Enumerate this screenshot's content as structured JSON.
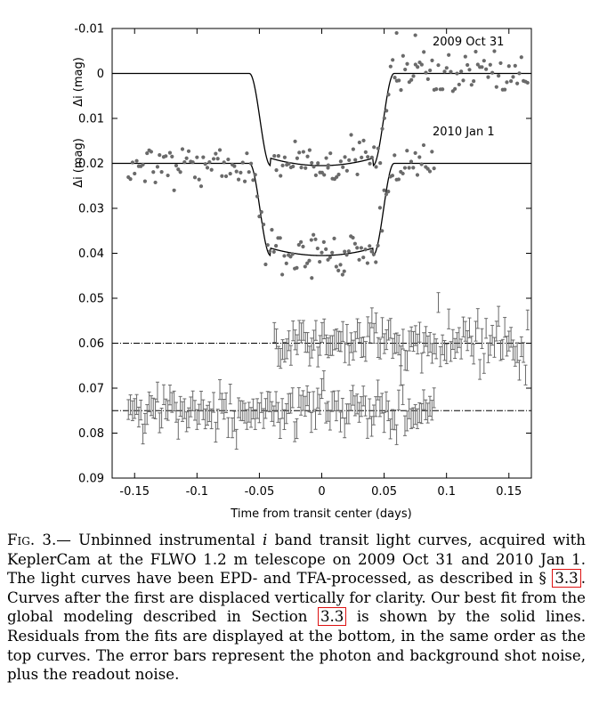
{
  "chart_data": {
    "type": "scatter",
    "xlabel": "Time from transit center (days)",
    "ylabel": "Δi (mag)",
    "xlim": [
      -0.168,
      0.168
    ],
    "ylim": [
      0.09,
      -0.01
    ],
    "y_inverted": true,
    "xticks": [
      "-0.15",
      "-0.1",
      "-0.05",
      "0",
      "0.05",
      "0.1",
      "0.15"
    ],
    "yticks": [
      "-0.01",
      "0",
      "0.01",
      "0.02",
      "0.03",
      "0.04",
      "0.05",
      "0.06",
      "0.07",
      "0.08",
      "0.09"
    ],
    "grid": false,
    "series": [
      {
        "name": "2009 Oct 31",
        "offset": 0.0,
        "depth": 0.0205,
        "x_range": [
          -0.038,
          0.165
        ],
        "ingress_center": -0.0495,
        "egress_center": 0.0495,
        "sigma": 0.0035,
        "outliers": [
          [
            0.06,
            -0.009
          ],
          [
            0.075,
            -0.0085
          ],
          [
            0.005,
            0.021
          ]
        ]
      },
      {
        "name": "2010 Jan 1",
        "offset": 0.02,
        "depth": 0.0205,
        "x_range": [
          -0.155,
          0.09
        ],
        "ingress_center": -0.0495,
        "egress_center": 0.0495,
        "sigma": 0.0035,
        "outliers": [
          [
            -0.008,
            0.0455
          ],
          [
            0.018,
            0.044
          ]
        ]
      }
    ],
    "model_curves": [
      {
        "baseline": 0.0,
        "depth": 0.0205,
        "ingress": [
          -0.058,
          -0.041
        ],
        "egress": [
          0.041,
          0.058
        ]
      },
      {
        "baseline": 0.02,
        "depth": 0.0205,
        "ingress": [
          -0.058,
          -0.041
        ],
        "egress": [
          0.041,
          0.058
        ]
      }
    ],
    "residuals": [
      {
        "level": 0.06,
        "x_range": [
          -0.038,
          0.165
        ],
        "errbar": 0.0022,
        "sigma": 0.0026
      },
      {
        "level": 0.075,
        "x_range": [
          -0.155,
          0.09
        ],
        "errbar": 0.0022,
        "sigma": 0.0023
      }
    ],
    "annotations": [
      "2009 Oct 31",
      "2010 Jan 1"
    ],
    "ylabel_secondary": "Δi (mag)"
  },
  "caption": {
    "fig_label": "Fig. 3.—",
    "part1": " Unbinned instrumental ",
    "i_symbol": "i",
    "part2": " band transit light curves, acquired with KeplerCam at the FLWO 1.2 m telescope on 2009 Oct 31 and 2010 Jan 1. The light curves have been EPD- and TFA-processed, as described in § ",
    "ref1": "3.3",
    "part3": ". Curves after the first are displaced vertically for clarity. Our best fit from the global modeling described in Section ",
    "ref2": "3.3",
    "part4": " is shown by the solid lines. Residuals from the fits are displayed at the bottom, in the same order as the top curves. The error bars represent the photon and background shot noise, plus the readout noise."
  }
}
